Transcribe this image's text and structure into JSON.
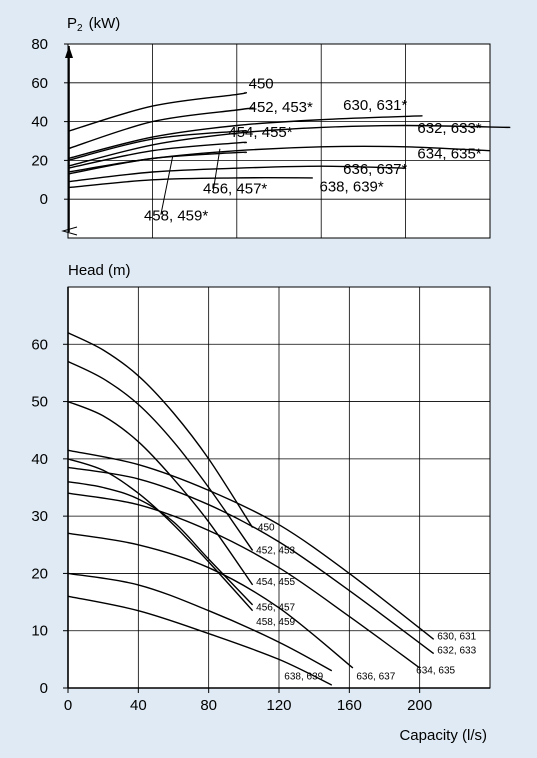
{
  "colors": {
    "background": "#dfeaf4",
    "grid": "#000000",
    "curve": "#000000"
  },
  "chart_data": [
    {
      "type": "line",
      "ylabel_main": "P",
      "ylabel_sub": "2",
      "ylabel_unit": "(kW)",
      "xlim": [
        0,
        250
      ],
      "ylim": [
        -20,
        80
      ],
      "grid": true,
      "yticks": [
        0,
        20,
        40,
        60,
        80
      ],
      "series": [
        {
          "name": "450",
          "x": [
            0,
            50,
            100,
            105
          ],
          "y": [
            35,
            48,
            54,
            55
          ]
        },
        {
          "name": "452, 453*",
          "x": [
            0,
            50,
            100,
            110
          ],
          "y": [
            26,
            40,
            46,
            47
          ]
        },
        {
          "name": "630, 631*",
          "x": [
            0,
            50,
            100,
            150,
            210
          ],
          "y": [
            21,
            32,
            38,
            41,
            43
          ]
        },
        {
          "name": "632, 633*",
          "x": [
            0,
            50,
            100,
            150,
            200,
            262
          ],
          "y": [
            17,
            28,
            34,
            37,
            38,
            37
          ]
        },
        {
          "name": "454, 455*",
          "x": [
            0,
            50,
            100,
            105
          ],
          "y": [
            20,
            31,
            35,
            35
          ]
        },
        {
          "name": "634, 635*",
          "x": [
            0,
            50,
            100,
            150,
            200,
            250
          ],
          "y": [
            14,
            21,
            25,
            27,
            27,
            25
          ]
        },
        {
          "name": "456, 457*",
          "x": [
            0,
            50,
            100,
            105
          ],
          "y": [
            16,
            25,
            29,
            29
          ]
        },
        {
          "name": "458, 459*",
          "x": [
            0,
            50,
            100,
            105
          ],
          "y": [
            13,
            21,
            24,
            24
          ]
        },
        {
          "name": "636, 637*",
          "x": [
            0,
            50,
            100,
            150,
            200
          ],
          "y": [
            9,
            14,
            16,
            17,
            16
          ]
        },
        {
          "name": "638, 639*",
          "x": [
            0,
            50,
            100,
            145
          ],
          "y": [
            6,
            10,
            11,
            11
          ]
        }
      ],
      "labels": [
        {
          "text": "450",
          "x": 107,
          "y": 57
        },
        {
          "text": "452, 453*",
          "x": 107,
          "y": 45
        },
        {
          "text": "630, 631*",
          "x": 163,
          "y": 46
        },
        {
          "text": "632, 633*",
          "x": 207,
          "y": 34
        },
        {
          "text": "454, 455*",
          "x": 95,
          "y": 32
        },
        {
          "text": "634, 635*",
          "x": 207,
          "y": 21
        },
        {
          "text": "636, 637*",
          "x": 163,
          "y": 13
        },
        {
          "text": "456, 457*",
          "x": 80,
          "y": 3
        },
        {
          "text": "638, 639*",
          "x": 149,
          "y": 4
        },
        {
          "text": "458, 459*",
          "x": 45,
          "y": -11
        }
      ]
    },
    {
      "type": "line",
      "ylabel": "Head (m)",
      "xlabel": "Capacity (l/s)",
      "xlim": [
        0,
        240
      ],
      "ylim": [
        0,
        70
      ],
      "grid": true,
      "xticks": [
        0,
        40,
        80,
        120,
        160,
        200
      ],
      "yticks": [
        0,
        10,
        20,
        30,
        40,
        50,
        60
      ],
      "series": [
        {
          "name": "450",
          "x": [
            0,
            20,
            40,
            60,
            80,
            105
          ],
          "y": [
            62,
            59,
            54.5,
            48,
            40,
            28
          ]
        },
        {
          "name": "452, 453",
          "x": [
            0,
            20,
            40,
            60,
            80,
            105
          ],
          "y": [
            57,
            54,
            49.5,
            43,
            35,
            24
          ]
        },
        {
          "name": "630, 631",
          "x": [
            0,
            40,
            80,
            120,
            160,
            208
          ],
          "y": [
            41.5,
            39,
            34.5,
            28.5,
            20,
            8.5
          ]
        },
        {
          "name": "632, 633",
          "x": [
            0,
            40,
            80,
            120,
            160,
            208
          ],
          "y": [
            38.5,
            36.5,
            32,
            25.5,
            17,
            6
          ]
        },
        {
          "name": "634, 635",
          "x": [
            0,
            40,
            80,
            120,
            160,
            200
          ],
          "y": [
            34,
            32,
            27.5,
            21,
            12.5,
            3.5
          ]
        },
        {
          "name": "454, 455",
          "x": [
            0,
            20,
            40,
            60,
            80,
            105
          ],
          "y": [
            50,
            47.5,
            43,
            36.5,
            29,
            18
          ]
        },
        {
          "name": "456, 457",
          "x": [
            0,
            20,
            40,
            60,
            80,
            105
          ],
          "y": [
            40,
            38,
            34,
            28.5,
            22,
            13.5
          ]
        },
        {
          "name": "458, 459",
          "x": [
            0,
            20,
            40,
            60,
            80,
            105
          ],
          "y": [
            36,
            35,
            33,
            29,
            22.5,
            14.5
          ]
        },
        {
          "name": "636, 637",
          "x": [
            0,
            40,
            80,
            120,
            162
          ],
          "y": [
            27,
            25,
            21,
            14,
            3.5
          ]
        },
        {
          "name": "638, 639",
          "x": [
            0,
            40,
            80,
            120,
            150
          ],
          "y": [
            20,
            18,
            13.5,
            8,
            3
          ]
        },
        {
          "name": "",
          "x": [
            0,
            40,
            80,
            120,
            150
          ],
          "y": [
            16,
            13.5,
            9.5,
            5,
            0.5
          ]
        }
      ],
      "labels": [
        {
          "text": "450",
          "x": 108,
          "y": 27.5
        },
        {
          "text": "452, 453",
          "x": 107,
          "y": 23.5
        },
        {
          "text": "454, 455",
          "x": 107,
          "y": 18
        },
        {
          "text": "456, 457",
          "x": 107,
          "y": 13.5
        },
        {
          "text": "458, 459",
          "x": 107,
          "y": 11
        },
        {
          "text": "630, 631",
          "x": 210,
          "y": 8.5
        },
        {
          "text": "632, 633",
          "x": 210,
          "y": 6
        },
        {
          "text": "634, 635",
          "x": 198,
          "y": 2.5
        },
        {
          "text": "636, 637",
          "x": 164,
          "y": 1.5
        },
        {
          "text": "638, 639",
          "x": 123,
          "y": 1.5
        }
      ]
    }
  ]
}
